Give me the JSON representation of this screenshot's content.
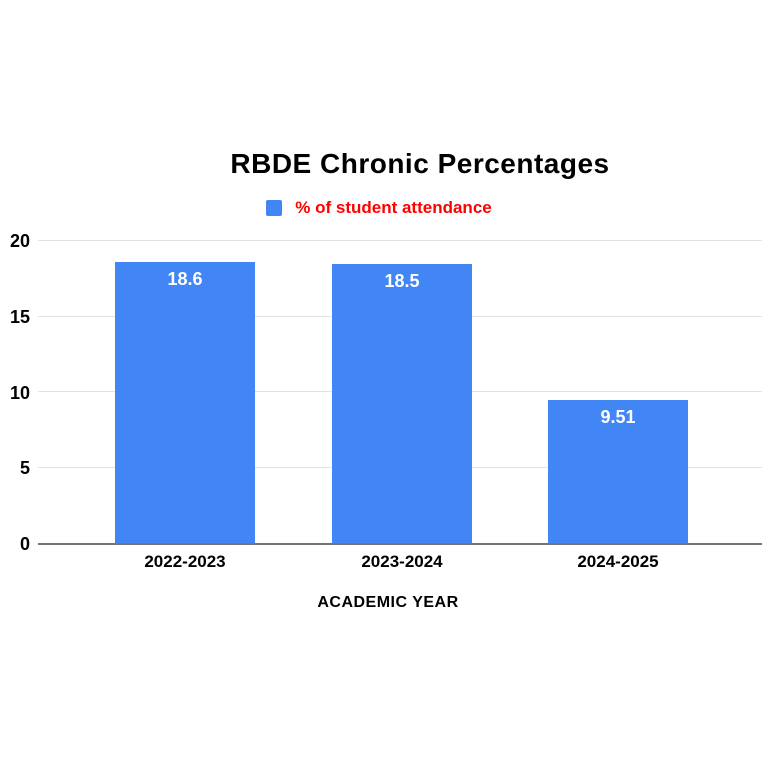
{
  "page": {
    "background_color": "#ffffff"
  },
  "chart_data": {
    "type": "bar",
    "title": "RBDE Chronic Percentages",
    "legend": {
      "label": "% of student attendance",
      "swatch_color": "#4285f4",
      "text_color": "#ff0000",
      "position": "top"
    },
    "categories": [
      "2022-2023",
      "2023-2024",
      "2024-2025"
    ],
    "values": [
      18.6,
      18.5,
      9.51
    ],
    "value_labels": [
      "18.6",
      "18.5",
      "9.51"
    ],
    "value_label_color": "#ffffff",
    "bar_color": "#4285f4",
    "xlabel": "ACADEMIC YEAR",
    "ylabel": "",
    "ylim": [
      0,
      20
    ],
    "yticks": [
      0,
      5,
      10,
      15,
      20
    ],
    "grid": true,
    "gridline_color": "#e3e3e3",
    "axis_line_color": "#757575"
  }
}
